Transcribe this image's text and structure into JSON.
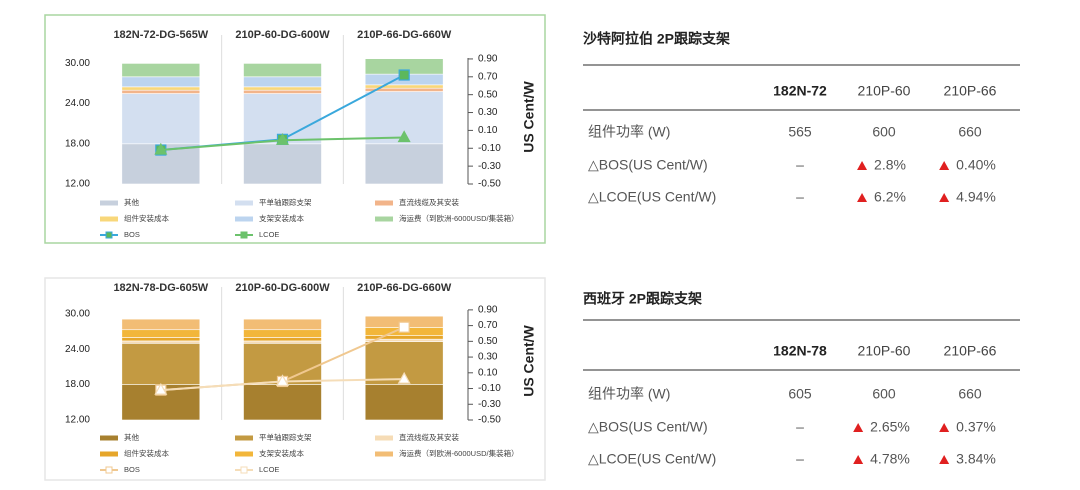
{
  "chart_data": [
    {
      "type": "bar",
      "categories": [
        "182N-72-DG-565W",
        "210P-60-DG-600W",
        "210P-66-DG-660W"
      ],
      "ylim": [
        12,
        32
      ],
      "yticks": [
        {
          "value": 12,
          "label": "12.00"
        },
        {
          "value": 18,
          "label": "18.00"
        },
        {
          "value": 24,
          "label": "24.00"
        },
        {
          "value": 30,
          "label": "30.00"
        }
      ],
      "y2lim": [
        -0.5,
        1.0
      ],
      "y2label": "US Cent/W",
      "y2ticks": [
        {
          "value": -0.5,
          "label": "-0.50"
        },
        {
          "value": -0.3,
          "label": "-0.30"
        },
        {
          "value": -0.1,
          "label": "-0.10"
        },
        {
          "value": 0.1,
          "label": "0.10"
        },
        {
          "value": 0.3,
          "label": "0.30"
        },
        {
          "value": 0.5,
          "label": "0.50"
        },
        {
          "value": 0.7,
          "label": "0.70"
        },
        {
          "value": 0.9,
          "label": "0.90"
        }
      ],
      "border_color": "#a8d5a0",
      "series": [
        {
          "name": "其他",
          "type": "bar",
          "color": "#c7d0dd",
          "values": [
            18,
            18,
            18
          ]
        },
        {
          "name": "平单轴跟踪支架",
          "type": "bar",
          "color": "#d3dff0",
          "values": [
            7.5,
            7.5,
            7.8
          ]
        },
        {
          "name": "直流线缆及其安装",
          "type": "bar",
          "color": "#f2b48a",
          "values": [
            0.5,
            0.5,
            0.5
          ]
        },
        {
          "name": "组件安装成本",
          "type": "bar",
          "color": "#f8d77a",
          "values": [
            0.5,
            0.5,
            0.5
          ]
        },
        {
          "name": "支架安装成本",
          "type": "bar",
          "color": "#bcd4ef",
          "values": [
            1.5,
            1.5,
            1.6
          ]
        },
        {
          "name": "海运费（到欧洲-6000USD/集装箱）",
          "type": "bar",
          "color": "#a8d5a0",
          "values": [
            2,
            2,
            2.3
          ]
        },
        {
          "name": "BOS",
          "type": "line",
          "axis": "y2",
          "color": "#3aa8dc",
          "marker": "square",
          "marker_color": "#5cb85c",
          "values": [
            -0.12,
            0.0,
            0.72
          ]
        },
        {
          "name": "LCOE",
          "type": "line",
          "axis": "y2",
          "color": "#6cc26c",
          "marker": "triangle",
          "marker_color": "#6cc26c",
          "values": [
            -0.12,
            -0.01,
            0.02
          ]
        }
      ]
    },
    {
      "type": "bar",
      "categories": [
        "182N-78-DG-605W",
        "210P-60-DG-600W",
        "210P-66-DG-660W"
      ],
      "ylim": [
        12,
        32
      ],
      "yticks": [
        {
          "value": 12,
          "label": "12.00"
        },
        {
          "value": 18,
          "label": "18.00"
        },
        {
          "value": 24,
          "label": "24.00"
        },
        {
          "value": 30,
          "label": "30.00"
        }
      ],
      "y2lim": [
        -0.5,
        1.0
      ],
      "y2label": "US Cent/W",
      "y2ticks": [
        {
          "value": -0.5,
          "label": "-0.50"
        },
        {
          "value": -0.3,
          "label": "-0.30"
        },
        {
          "value": -0.1,
          "label": "-0.10"
        },
        {
          "value": 0.1,
          "label": "0.10"
        },
        {
          "value": 0.3,
          "label": "0.30"
        },
        {
          "value": 0.5,
          "label": "0.50"
        },
        {
          "value": 0.7,
          "label": "0.70"
        },
        {
          "value": 0.9,
          "label": "0.90"
        }
      ],
      "border_color": "#e6e6e6",
      "series": [
        {
          "name": "其他",
          "type": "bar",
          "color": "#a7802f",
          "values": [
            18,
            18,
            18
          ]
        },
        {
          "name": "平单轴跟踪支架",
          "type": "bar",
          "color": "#c39a42",
          "values": [
            7,
            7,
            7.3
          ]
        },
        {
          "name": "直流线缆及其安装",
          "type": "bar",
          "color": "#f6dcb6",
          "values": [
            0.4,
            0.4,
            0.4
          ]
        },
        {
          "name": "组件安装成本",
          "type": "bar",
          "color": "#e6a62a",
          "values": [
            0.6,
            0.6,
            0.6
          ]
        },
        {
          "name": "支架安装成本",
          "type": "bar",
          "color": "#f2b63a",
          "values": [
            1.3,
            1.3,
            1.4
          ]
        },
        {
          "name": "海运费（到欧洲-6000USD/集装箱）",
          "type": "bar",
          "color": "#f2bd75",
          "values": [
            1.8,
            1.8,
            1.9
          ]
        },
        {
          "name": "BOS",
          "type": "line",
          "axis": "y2",
          "color": "#f0c890",
          "marker": "square",
          "marker_color": "#ffffff",
          "values": [
            -0.12,
            -0.01,
            0.68
          ]
        },
        {
          "name": "LCOE",
          "type": "line",
          "axis": "y2",
          "color": "#f5ddb8",
          "marker": "triangle",
          "marker_color": "#ffffff",
          "values": [
            -0.12,
            -0.01,
            0.02
          ]
        }
      ]
    }
  ],
  "tables": [
    {
      "title": "沙特阿拉伯 2P跟踪支架",
      "header": [
        "182N-72",
        "210P-60",
        "210P-66"
      ],
      "rows": [
        [
          "组件功率 (W)",
          "565",
          "600",
          "660"
        ],
        [
          "△BOS(US Cent/W)",
          "–",
          "2.8%",
          "0.40%"
        ],
        [
          "△LCOE(US Cent/W)",
          "–",
          "6.2%",
          "4.94%"
        ]
      ]
    },
    {
      "title": "西班牙 2P跟踪支架",
      "header": [
        "182N-78",
        "210P-60",
        "210P-66"
      ],
      "rows": [
        [
          "组件功率 (W)",
          "605",
          "600",
          "660"
        ],
        [
          "△BOS(US Cent/W)",
          "–",
          "2.65%",
          "0.37%"
        ],
        [
          "△LCOE(US Cent/W)",
          "–",
          "4.78%",
          "3.84%"
        ]
      ]
    }
  ]
}
